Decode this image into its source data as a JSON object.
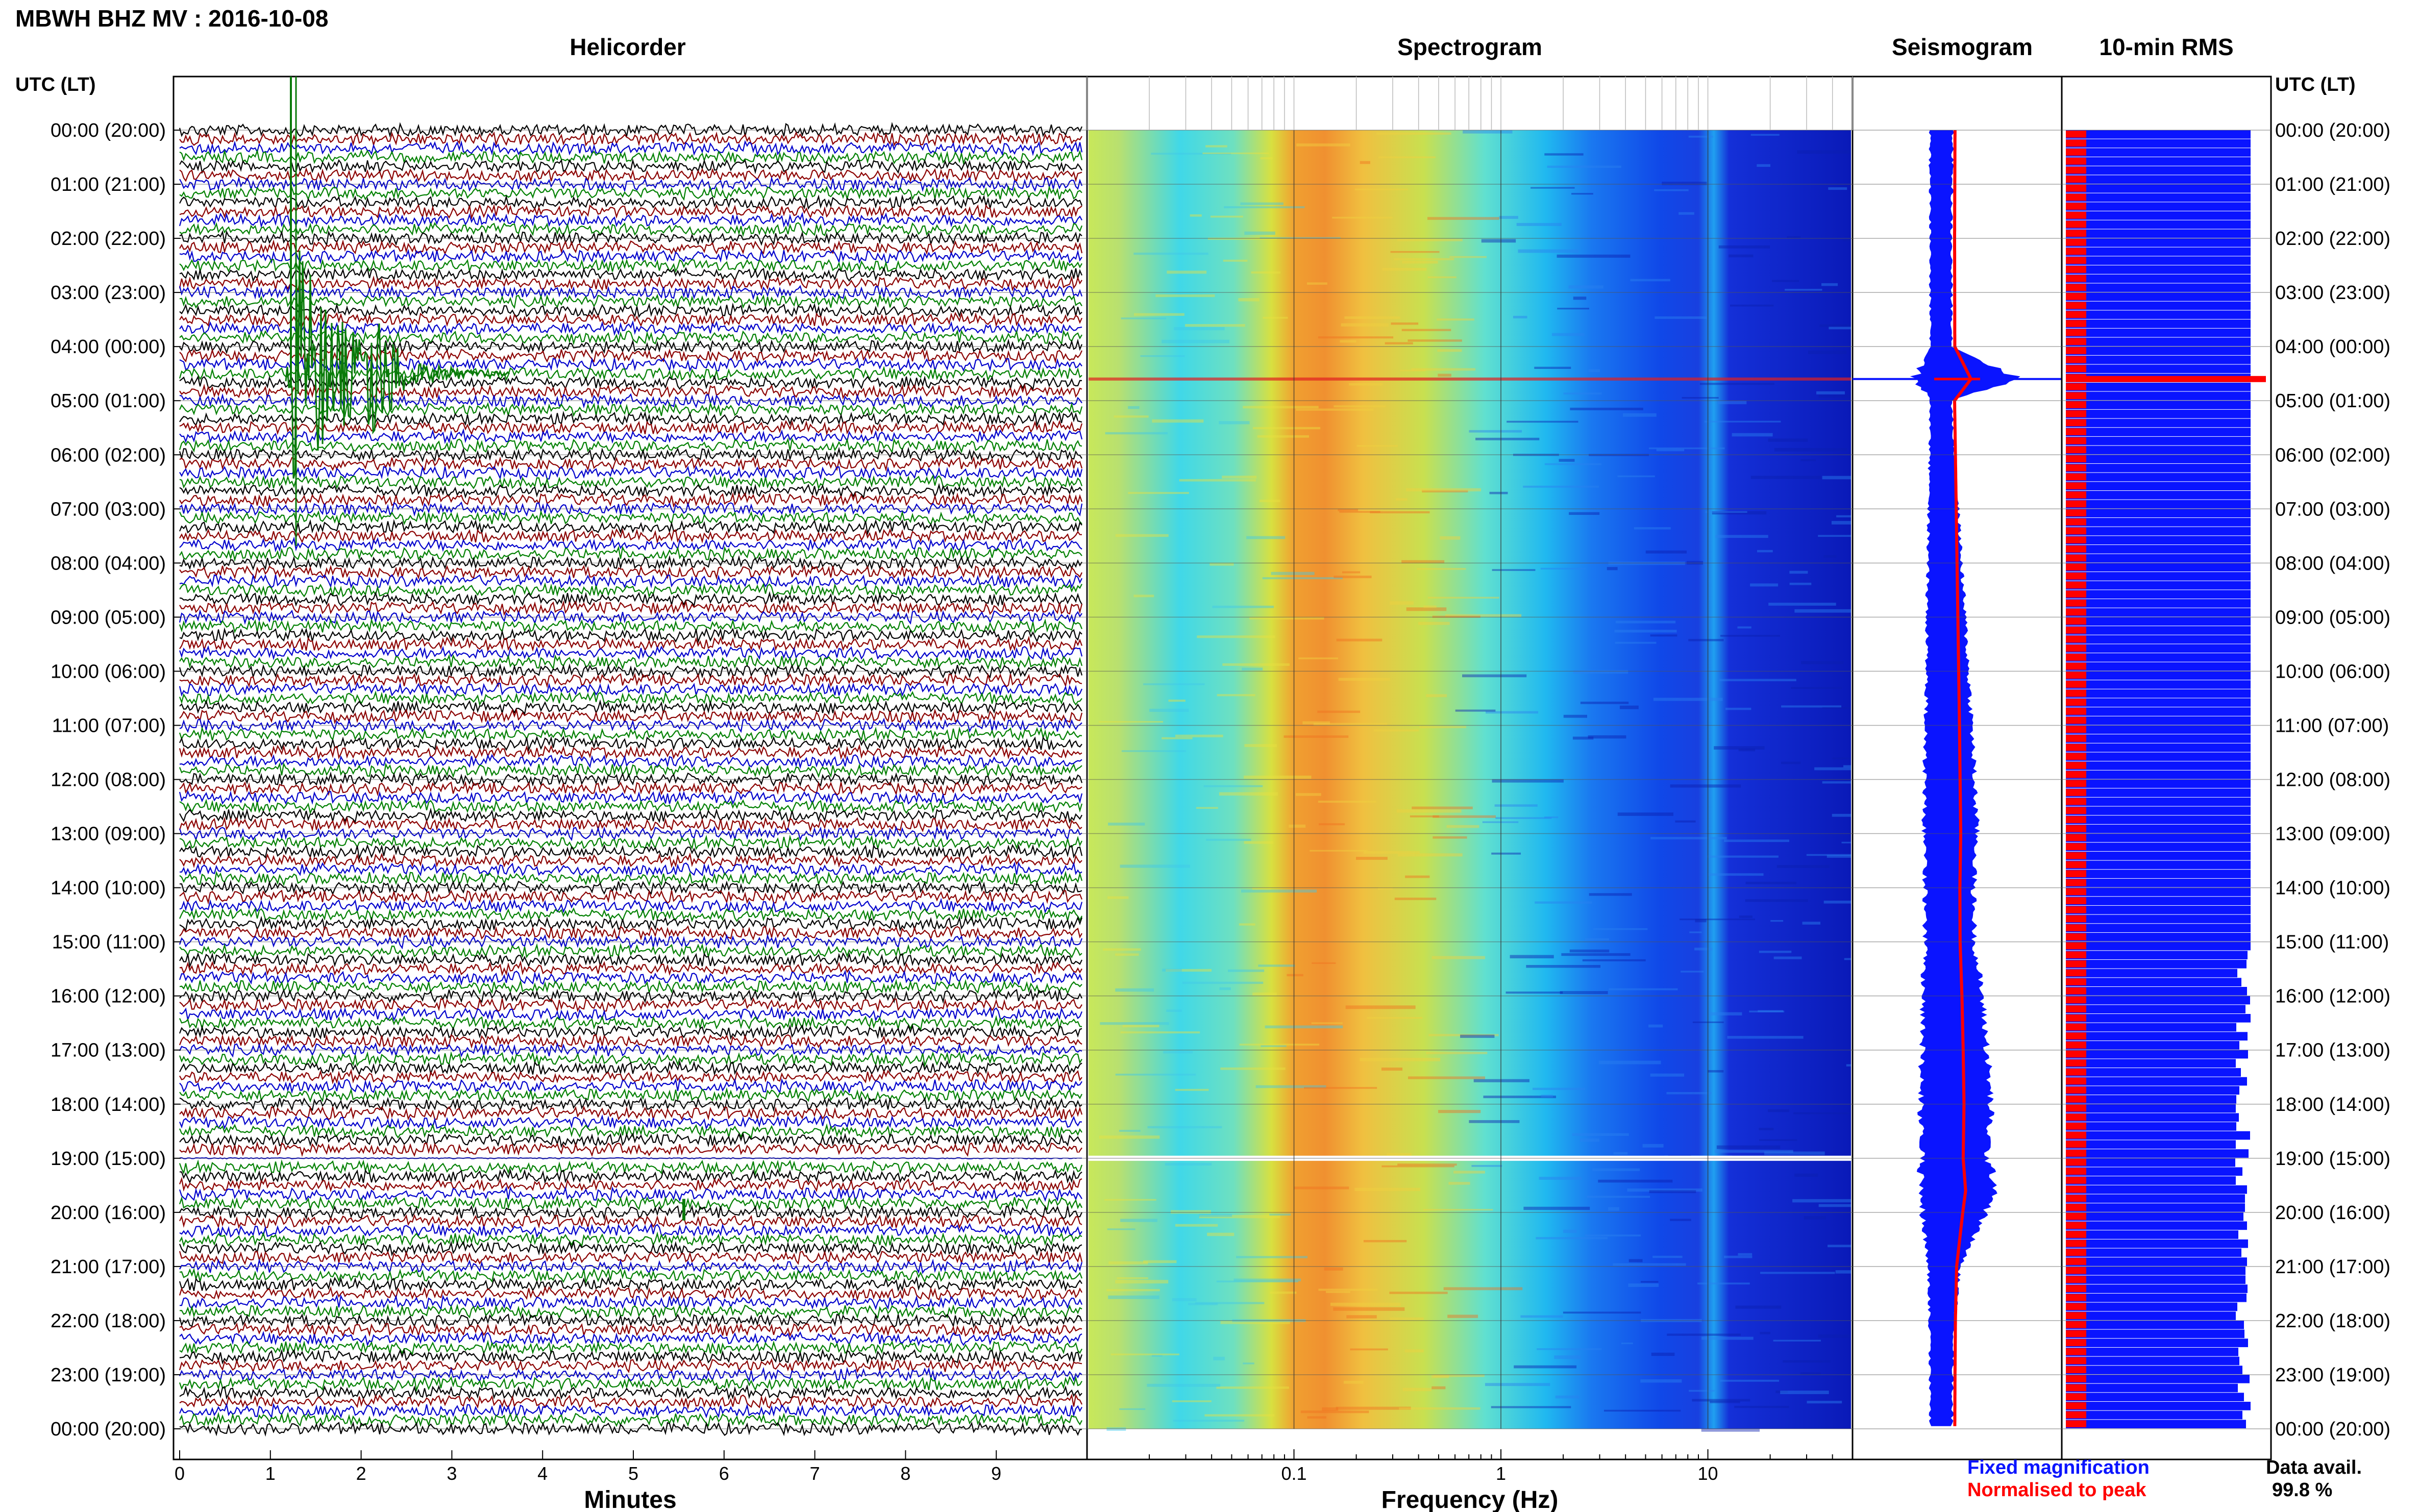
{
  "header": {
    "title": "MBWH BHZ MV : 2016-10-08"
  },
  "panels": {
    "helicorder": {
      "title": "Helicorder",
      "xlabel": "Minutes"
    },
    "spectrogram": {
      "title": "Spectrogram",
      "xlabel": "Frequency (Hz)"
    },
    "seismogram": {
      "title": "Seismogram"
    },
    "rms": {
      "title": "10-min RMS"
    }
  },
  "axis": {
    "left_label": "UTC (LT)",
    "right_label": "UTC (LT)",
    "time_ticks": [
      "00:00 (20:00)",
      "01:00 (21:00)",
      "02:00 (22:00)",
      "03:00 (23:00)",
      "04:00 (00:00)",
      "05:00 (01:00)",
      "06:00 (02:00)",
      "07:00 (03:00)",
      "08:00 (04:00)",
      "09:00 (05:00)",
      "10:00 (06:00)",
      "11:00 (07:00)",
      "12:00 (08:00)",
      "13:00 (09:00)",
      "14:00 (10:00)",
      "15:00 (11:00)",
      "16:00 (12:00)",
      "17:00 (13:00)",
      "18:00 (14:00)",
      "19:00 (15:00)",
      "20:00 (16:00)",
      "21:00 (17:00)",
      "22:00 (18:00)",
      "23:00 (19:00)",
      "00:00 (20:00)"
    ]
  },
  "legend": {
    "fixed": "Fixed magnification",
    "normalised": "Normalised to peak",
    "avail_label": "Data avail.",
    "avail_value": "99.8 %"
  },
  "colors": {
    "fixed": "#0a14ff",
    "normalised": "#ff0000",
    "traces": [
      "#000000",
      "#8b0000",
      "#0000cc",
      "#008000"
    ]
  },
  "chart_data": [
    {
      "type": "line",
      "panel": "helicorder",
      "xlabel": "Minutes",
      "xlim": [
        0,
        10
      ],
      "x_ticks": [
        "0",
        "1",
        "2",
        "3",
        "4",
        "5",
        "6",
        "7",
        "8",
        "9"
      ],
      "ylim": [
        "00:00",
        "24:00"
      ],
      "trace_colors_cycle": [
        "black",
        "darkred",
        "blue",
        "green"
      ],
      "events": [
        {
          "utc": "04:40",
          "start_minute": 1.2,
          "note": "large green event starting ~03:00 row with coda to ~3.5 min"
        },
        {
          "utc": "19:00",
          "note": "data gap / flat line"
        },
        {
          "utc": "20:00",
          "start_minute": 5.6,
          "note": "small event"
        }
      ]
    },
    {
      "type": "heatmap",
      "panel": "spectrogram",
      "xlabel": "Frequency (Hz)",
      "xscale": "log",
      "xlim": [
        0.01,
        50
      ],
      "x_ticks": [
        "0.1",
        "1",
        "10"
      ],
      "dominant_band_hz": [
        0.2,
        0.4
      ],
      "persistent_line_hz": 10
    },
    {
      "type": "line",
      "panel": "seismogram",
      "series": [
        {
          "name": "Fixed magnification",
          "hours": [
            0,
            2,
            4,
            4.6,
            5,
            7,
            9,
            11,
            13,
            14,
            15,
            16,
            17,
            18,
            19,
            19.6,
            20,
            20.5,
            21,
            22,
            23,
            24
          ],
          "amplitude": [
            0.22,
            0.2,
            0.21,
            1.0,
            0.2,
            0.28,
            0.36,
            0.44,
            0.5,
            0.46,
            0.47,
            0.56,
            0.62,
            0.66,
            0.62,
            0.74,
            0.6,
            0.45,
            0.3,
            0.24,
            0.22,
            0.21
          ]
        },
        {
          "name": "Normalised to peak",
          "peak_hour": 4.6
        }
      ]
    },
    {
      "type": "bar",
      "panel": "rms",
      "interval_minutes": 10,
      "peak_hour": 4.6,
      "note": "red bars constant, blue bars full width with small variations after 15:00"
    }
  ]
}
